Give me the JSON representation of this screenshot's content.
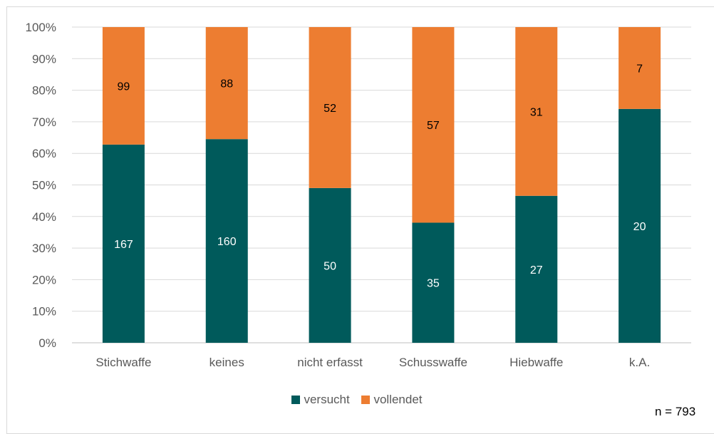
{
  "chart_data": {
    "type": "bar",
    "stacked": "percent",
    "categories": [
      "Stichwaffe",
      "keines",
      "nicht erfasst",
      "Schusswaffe",
      "Hiebwaffe",
      "k.A."
    ],
    "series": [
      {
        "name": "versucht",
        "color": "#005a5b",
        "values": [
          167,
          160,
          50,
          35,
          27,
          20
        ]
      },
      {
        "name": "vollendet",
        "color": "#ed7d31",
        "values": [
          99,
          88,
          52,
          57,
          31,
          7
        ]
      }
    ],
    "yticks": [
      "0%",
      "10%",
      "20%",
      "30%",
      "40%",
      "50%",
      "60%",
      "70%",
      "80%",
      "90%",
      "100%"
    ],
    "ylim": [
      0,
      100
    ],
    "grid": true,
    "legend": "bottom",
    "note": "n = 793"
  }
}
